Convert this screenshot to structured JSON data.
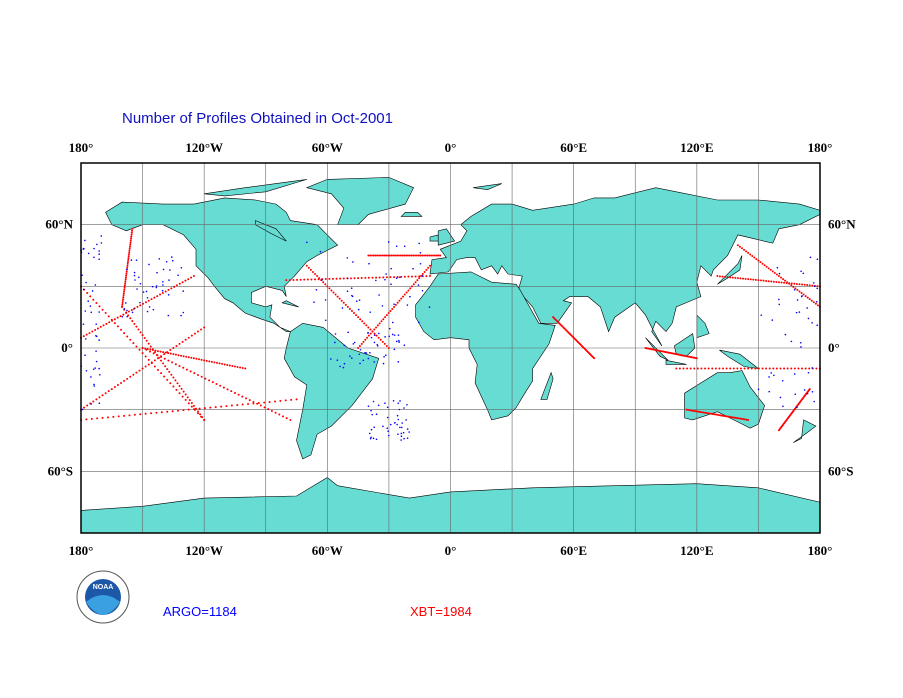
{
  "title": "Number of Profiles Obtained in Oct-2001",
  "map": {
    "lon_labels": [
      "180°",
      "120°W",
      "60°W",
      "0°",
      "60°E",
      "120°E",
      "180°"
    ],
    "lat_labels": [
      "60°N",
      "0°",
      "60°S"
    ]
  },
  "logo": "NOAA",
  "legend": {
    "argo": "ARGO=1184",
    "xbt": "XBT=1984"
  }
}
